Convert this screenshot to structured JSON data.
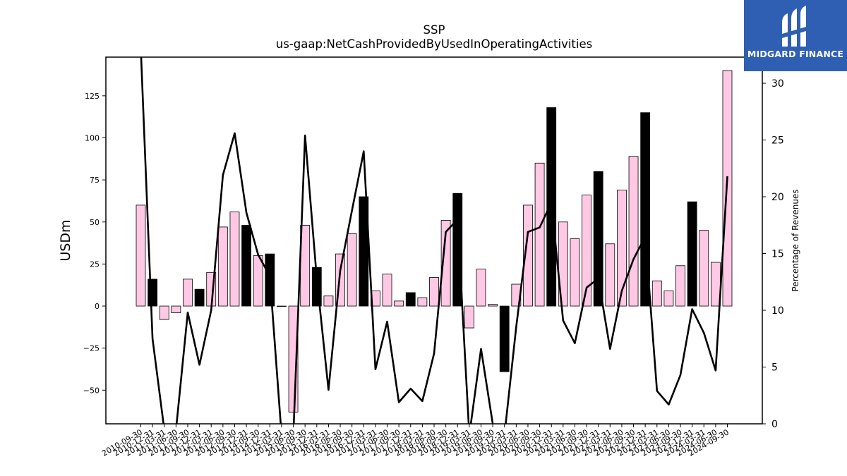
{
  "chart_data": {
    "type": "bar",
    "title": "SSP",
    "subtitle": "us-gaap:NetCashProvidedByUsedInOperatingActivities",
    "ylabel": "USDm",
    "y2label": "Percentage of Revenues",
    "ylim": [
      -70,
      148
    ],
    "y2lim": [
      0,
      32.3
    ],
    "yticks": [
      -50,
      -25,
      0,
      25,
      50,
      75,
      100,
      125
    ],
    "y2ticks": [
      0,
      5,
      10,
      15,
      20,
      25,
      30
    ],
    "categories": [
      "2010-09-30",
      "2010-12-31",
      "2011-03-31",
      "2011-06-30",
      "2011-09-30",
      "2011-12-31",
      "2012-03-31",
      "2012-06-30",
      "2012-09-30",
      "2012-12-31",
      "2014-09-30",
      "2014-12-31",
      "2015-03-31",
      "2015-06-30",
      "2015-09-30",
      "2015-12-31",
      "2016-03-31",
      "2016-06-30",
      "2016-09-30",
      "2016-12-31",
      "2017-03-31",
      "2017-06-30",
      "2017-09-30",
      "2017-12-31",
      "2018-03-31",
      "2018-06-30",
      "2018-09-30",
      "2018-12-31",
      "2019-03-31",
      "2019-06-30",
      "2019-09-30",
      "2019-12-31",
      "2020-03-31",
      "2020-06-30",
      "2020-09-30",
      "2020-12-31",
      "2021-03-31",
      "2021-06-30",
      "2021-09-30",
      "2021-12-31",
      "2022-03-31",
      "2022-06-30",
      "2022-09-30",
      "2022-12-31",
      "2023-03-31",
      "2023-06-30",
      "2023-09-30",
      "2023-12-31",
      "2024-03-31",
      "2024-06-30",
      "2024-09-30"
    ],
    "series": [
      {
        "kind": "bar",
        "values": [
          60,
          16,
          -8,
          -4,
          16,
          10,
          20,
          47,
          56,
          48,
          30,
          31,
          0,
          -63,
          48,
          23,
          6,
          31,
          43,
          65,
          9,
          19,
          3,
          8,
          5,
          17,
          51,
          67,
          -13,
          22,
          1,
          -39,
          13,
          60,
          85,
          118,
          50,
          40,
          66,
          80,
          37,
          69,
          89,
          115,
          15,
          9,
          24,
          62,
          45,
          26,
          140
        ],
        "highlight": [
          false,
          true,
          false,
          false,
          false,
          true,
          false,
          false,
          false,
          true,
          false,
          true,
          false,
          false,
          false,
          true,
          false,
          false,
          false,
          true,
          false,
          false,
          false,
          true,
          false,
          false,
          false,
          true,
          false,
          false,
          false,
          true,
          false,
          false,
          false,
          true,
          false,
          false,
          false,
          true,
          false,
          false,
          false,
          true,
          false,
          false,
          false,
          true,
          false,
          false,
          false
        ]
      },
      {
        "kind": "line",
        "axis": "secondary",
        "values": [
          33.0,
          7.5,
          -0.5,
          -0.5,
          9.8,
          5.2,
          10.0,
          21.9,
          25.6,
          18.6,
          14.9,
          13.0,
          -1.0,
          -1.0,
          25.4,
          12.8,
          3.0,
          13.5,
          18.8,
          24.0,
          4.8,
          9.0,
          1.9,
          3.1,
          2.0,
          6.2,
          16.9,
          18.0,
          -1.0,
          6.6,
          0.0,
          -1.0,
          8.5,
          16.9,
          17.3,
          19.5,
          9.1,
          7.1,
          12.0,
          12.8,
          6.6,
          11.7,
          14.5,
          16.5,
          2.9,
          1.7,
          4.3,
          10.1,
          8.0,
          4.7,
          21.8
        ]
      }
    ],
    "colors": {
      "bar": "#ffc8e4",
      "bar_highlight": "#000000",
      "bar_edge": "#000000",
      "line": "#000000"
    },
    "grid": false
  },
  "logo": {
    "text": "MIDGARD FINANCE",
    "background": "#2f5fb3"
  }
}
